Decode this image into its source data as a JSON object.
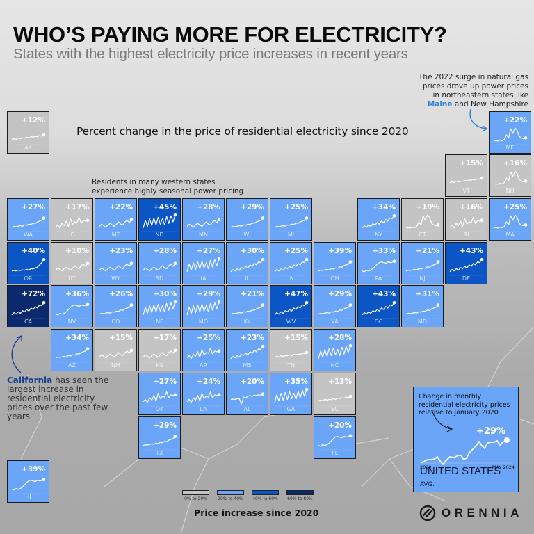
{
  "header": {
    "title": "WHO’S PAYING MORE FOR ELECTRICITY?",
    "subtitle": "States with the highest electricity price increases in recent years"
  },
  "chart_heading": "Percent change in the price of residential electricity since 2020",
  "notes": {
    "west": [
      "Residents in many western states",
      "experience highly seasonal power pricing"
    ],
    "northeast": {
      "lines": [
        "The 2022 surge in natural gas",
        "prices drove up power prices",
        "in northeastern states like"
      ],
      "highlight": "Maine",
      "rest": " and New Hampshire"
    },
    "california": {
      "highlight": "California",
      "rest": " has seen the largest increase in residential electricity prices over the past few years"
    }
  },
  "colors": {
    "bin_0_20": "#c4c4c4",
    "bin_20_40": "#6aa5f8",
    "bin_40_60": "#0c55c4",
    "bin_60_80": "#0b2a6e",
    "highlight_blue": "#2a7fd6"
  },
  "legend": {
    "title": "Price increase since 2020",
    "items": [
      {
        "label": "0% to 20%",
        "color": "#c4c4c4"
      },
      {
        "label": "20% to 40%",
        "color": "#6aa5f8"
      },
      {
        "label": "40% to 60%",
        "color": "#0c55c4"
      },
      {
        "label": "60% to 80%",
        "color": "#0b2a6e"
      }
    ]
  },
  "us_avg": {
    "caption": "Change in monthly residential electricity prices relative to January 2020",
    "pct": "+29%",
    "x_start": "2020",
    "x_end": "MAY 2024",
    "label": "UNITED STATES",
    "label_small": "AVG."
  },
  "brand": "ORENNIA",
  "chart_data": {
    "type": "table",
    "title": "WHO’S PAYING MORE FOR ELECTRICITY?",
    "subtitle": "Percent change in the price of residential electricity since 2020 (tile-grid map with monthly sparklines, Jan 2020 – May 2024)",
    "legend": [
      "0% to 20%",
      "20% to 40%",
      "40% to 60%",
      "60% to 80%"
    ],
    "us_average": 29,
    "states": [
      {
        "abbr": "AK",
        "pct": 12,
        "col": 0,
        "row": 0,
        "bin": 0,
        "shape": "flat"
      },
      {
        "abbr": "ME",
        "pct": 22,
        "col": 11,
        "row": 0,
        "bin": 1,
        "shape": "spike"
      },
      {
        "abbr": "VT",
        "pct": 15,
        "col": 10,
        "row": 1,
        "bin": 0,
        "shape": "flat"
      },
      {
        "abbr": "NH",
        "pct": 16,
        "col": 11,
        "row": 1,
        "bin": 0,
        "shape": "spike"
      },
      {
        "abbr": "WA",
        "pct": 27,
        "col": 0,
        "row": 2,
        "bin": 1,
        "shape": "rise"
      },
      {
        "abbr": "ID",
        "pct": 17,
        "col": 1,
        "row": 2,
        "bin": 0,
        "shape": "noisy"
      },
      {
        "abbr": "MT",
        "pct": 22,
        "col": 2,
        "row": 2,
        "bin": 1,
        "shape": "wave"
      },
      {
        "abbr": "ND",
        "pct": 45,
        "col": 3,
        "row": 2,
        "bin": 2,
        "shape": "seasonal"
      },
      {
        "abbr": "MN",
        "pct": 28,
        "col": 4,
        "row": 2,
        "bin": 1,
        "shape": "wave"
      },
      {
        "abbr": "WI",
        "pct": 29,
        "col": 5,
        "row": 2,
        "bin": 1,
        "shape": "rise"
      },
      {
        "abbr": "MI",
        "pct": 25,
        "col": 6,
        "row": 2,
        "bin": 1,
        "shape": "rise"
      },
      {
        "abbr": "NY",
        "pct": 34,
        "col": 8,
        "row": 2,
        "bin": 1,
        "shape": "noisyrise"
      },
      {
        "abbr": "CT",
        "pct": 19,
        "col": 9,
        "row": 2,
        "bin": 0,
        "shape": "spike"
      },
      {
        "abbr": "RI",
        "pct": 16,
        "col": 10,
        "row": 2,
        "bin": 0,
        "shape": "noisy"
      },
      {
        "abbr": "MA",
        "pct": 25,
        "col": 11,
        "row": 2,
        "bin": 1,
        "shape": "spike"
      },
      {
        "abbr": "OR",
        "pct": 40,
        "col": 0,
        "row": 3,
        "bin": 2,
        "shape": "late"
      },
      {
        "abbr": "UT",
        "pct": 10,
        "col": 1,
        "row": 3,
        "bin": 0,
        "shape": "wave"
      },
      {
        "abbr": "WY",
        "pct": 23,
        "col": 2,
        "row": 3,
        "bin": 1,
        "shape": "wave"
      },
      {
        "abbr": "SD",
        "pct": 28,
        "col": 3,
        "row": 3,
        "bin": 1,
        "shape": "wave"
      },
      {
        "abbr": "IA",
        "pct": 27,
        "col": 4,
        "row": 3,
        "bin": 1,
        "shape": "seasonal"
      },
      {
        "abbr": "IL",
        "pct": 30,
        "col": 5,
        "row": 3,
        "bin": 1,
        "shape": "noisyrise"
      },
      {
        "abbr": "IN",
        "pct": 25,
        "col": 6,
        "row": 3,
        "bin": 1,
        "shape": "noisyrise"
      },
      {
        "abbr": "OH",
        "pct": 39,
        "col": 7,
        "row": 3,
        "bin": 1,
        "shape": "rise"
      },
      {
        "abbr": "PA",
        "pct": 33,
        "col": 8,
        "row": 3,
        "bin": 1,
        "shape": "scurve"
      },
      {
        "abbr": "NJ",
        "pct": 21,
        "col": 9,
        "row": 3,
        "bin": 1,
        "shape": "rise"
      },
      {
        "abbr": "DE",
        "pct": 43,
        "col": 10,
        "row": 3,
        "bin": 2,
        "shape": "noisyrise"
      },
      {
        "abbr": "CA",
        "pct": 72,
        "col": 0,
        "row": 4,
        "bin": 3,
        "shape": "noisyrise"
      },
      {
        "abbr": "NV",
        "pct": 36,
        "col": 1,
        "row": 4,
        "bin": 1,
        "shape": "scurve"
      },
      {
        "abbr": "CO",
        "pct": 26,
        "col": 2,
        "row": 4,
        "bin": 1,
        "shape": "rise"
      },
      {
        "abbr": "NE",
        "pct": 30,
        "col": 3,
        "row": 4,
        "bin": 1,
        "shape": "seasonal"
      },
      {
        "abbr": "MO",
        "pct": 29,
        "col": 4,
        "row": 4,
        "bin": 1,
        "shape": "seasonal"
      },
      {
        "abbr": "KY",
        "pct": 21,
        "col": 5,
        "row": 4,
        "bin": 1,
        "shape": "rise"
      },
      {
        "abbr": "WV",
        "pct": 47,
        "col": 6,
        "row": 4,
        "bin": 2,
        "shape": "noisyrise"
      },
      {
        "abbr": "VA",
        "pct": 29,
        "col": 7,
        "row": 4,
        "bin": 1,
        "shape": "rise"
      },
      {
        "abbr": "DC",
        "pct": 43,
        "col": 8,
        "row": 4,
        "bin": 2,
        "shape": "noisyrise"
      },
      {
        "abbr": "MD",
        "pct": 31,
        "col": 9,
        "row": 4,
        "bin": 1,
        "shape": "rise"
      },
      {
        "abbr": "AZ",
        "pct": 34,
        "col": 1,
        "row": 5,
        "bin": 1,
        "shape": "rise"
      },
      {
        "abbr": "NM",
        "pct": 15,
        "col": 2,
        "row": 5,
        "bin": 0,
        "shape": "wave"
      },
      {
        "abbr": "KS",
        "pct": 17,
        "col": 3,
        "row": 5,
        "bin": 0,
        "shape": "wave"
      },
      {
        "abbr": "AR",
        "pct": 25,
        "col": 4,
        "row": 5,
        "bin": 1,
        "shape": "noisy"
      },
      {
        "abbr": "MS",
        "pct": 23,
        "col": 5,
        "row": 5,
        "bin": 1,
        "shape": "noisyrise"
      },
      {
        "abbr": "TN",
        "pct": 15,
        "col": 6,
        "row": 5,
        "bin": 0,
        "shape": "flat"
      },
      {
        "abbr": "NC",
        "pct": 28,
        "col": 7,
        "row": 5,
        "bin": 1,
        "shape": "seasonal"
      },
      {
        "abbr": "OK",
        "pct": 27,
        "col": 3,
        "row": 6,
        "bin": 1,
        "shape": "noisy"
      },
      {
        "abbr": "LA",
        "pct": 24,
        "col": 4,
        "row": 6,
        "bin": 1,
        "shape": "noisy"
      },
      {
        "abbr": "AL",
        "pct": 20,
        "col": 5,
        "row": 6,
        "bin": 1,
        "shape": "dip"
      },
      {
        "abbr": "GA",
        "pct": 35,
        "col": 6,
        "row": 6,
        "bin": 1,
        "shape": "seasonal"
      },
      {
        "abbr": "SC",
        "pct": 13,
        "col": 7,
        "row": 6,
        "bin": 0,
        "shape": "flat"
      },
      {
        "abbr": "TX",
        "pct": 29,
        "col": 3,
        "row": 7,
        "bin": 1,
        "shape": "rise"
      },
      {
        "abbr": "FL",
        "pct": 20,
        "col": 7,
        "row": 7,
        "bin": 1,
        "shape": "scurve"
      },
      {
        "abbr": "HI",
        "pct": 39,
        "col": 0,
        "row": 8,
        "bin": 1,
        "shape": "scurve"
      }
    ]
  }
}
